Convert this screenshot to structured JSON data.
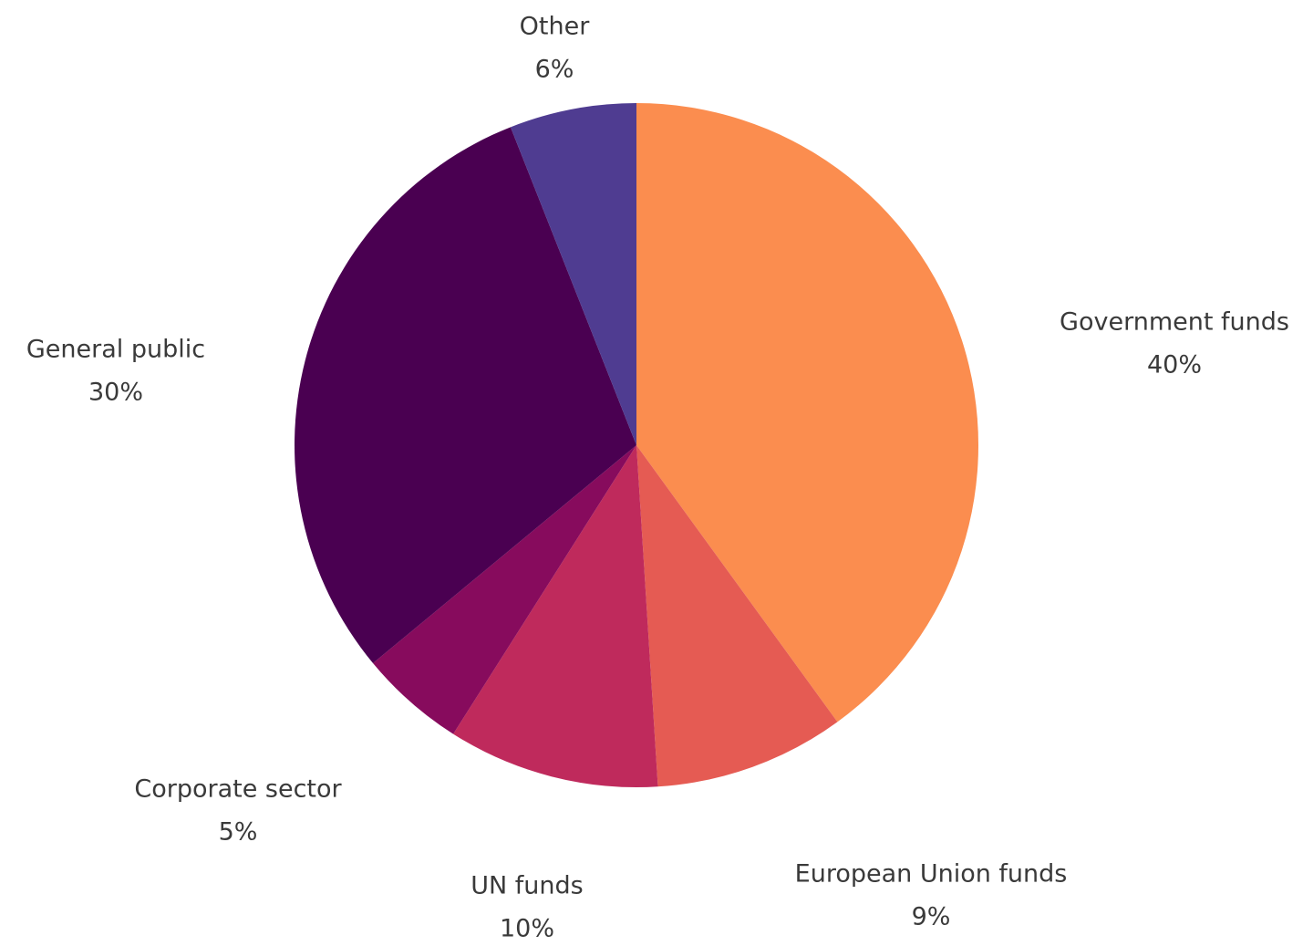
{
  "chart_data": {
    "type": "pie",
    "unit": "%",
    "start_angle_deg": 0,
    "direction": "clockwise",
    "legend": "none",
    "slices": [
      {
        "label": "Government funds",
        "value": 40,
        "value_label": "40%",
        "color": "#fb8d4f"
      },
      {
        "label": "European Union funds",
        "value": 9,
        "value_label": "9%",
        "color": "#e55b53"
      },
      {
        "label": "UN funds",
        "value": 10,
        "value_label": "10%",
        "color": "#bf2a5c"
      },
      {
        "label": "Corporate sector",
        "value": 5,
        "value_label": "5%",
        "color": "#870b5d"
      },
      {
        "label": "General public",
        "value": 30,
        "value_label": "30%",
        "color": "#4a0051"
      },
      {
        "label": "Other",
        "value": 6,
        "value_label": "6%",
        "color": "#4f3c91"
      }
    ]
  }
}
